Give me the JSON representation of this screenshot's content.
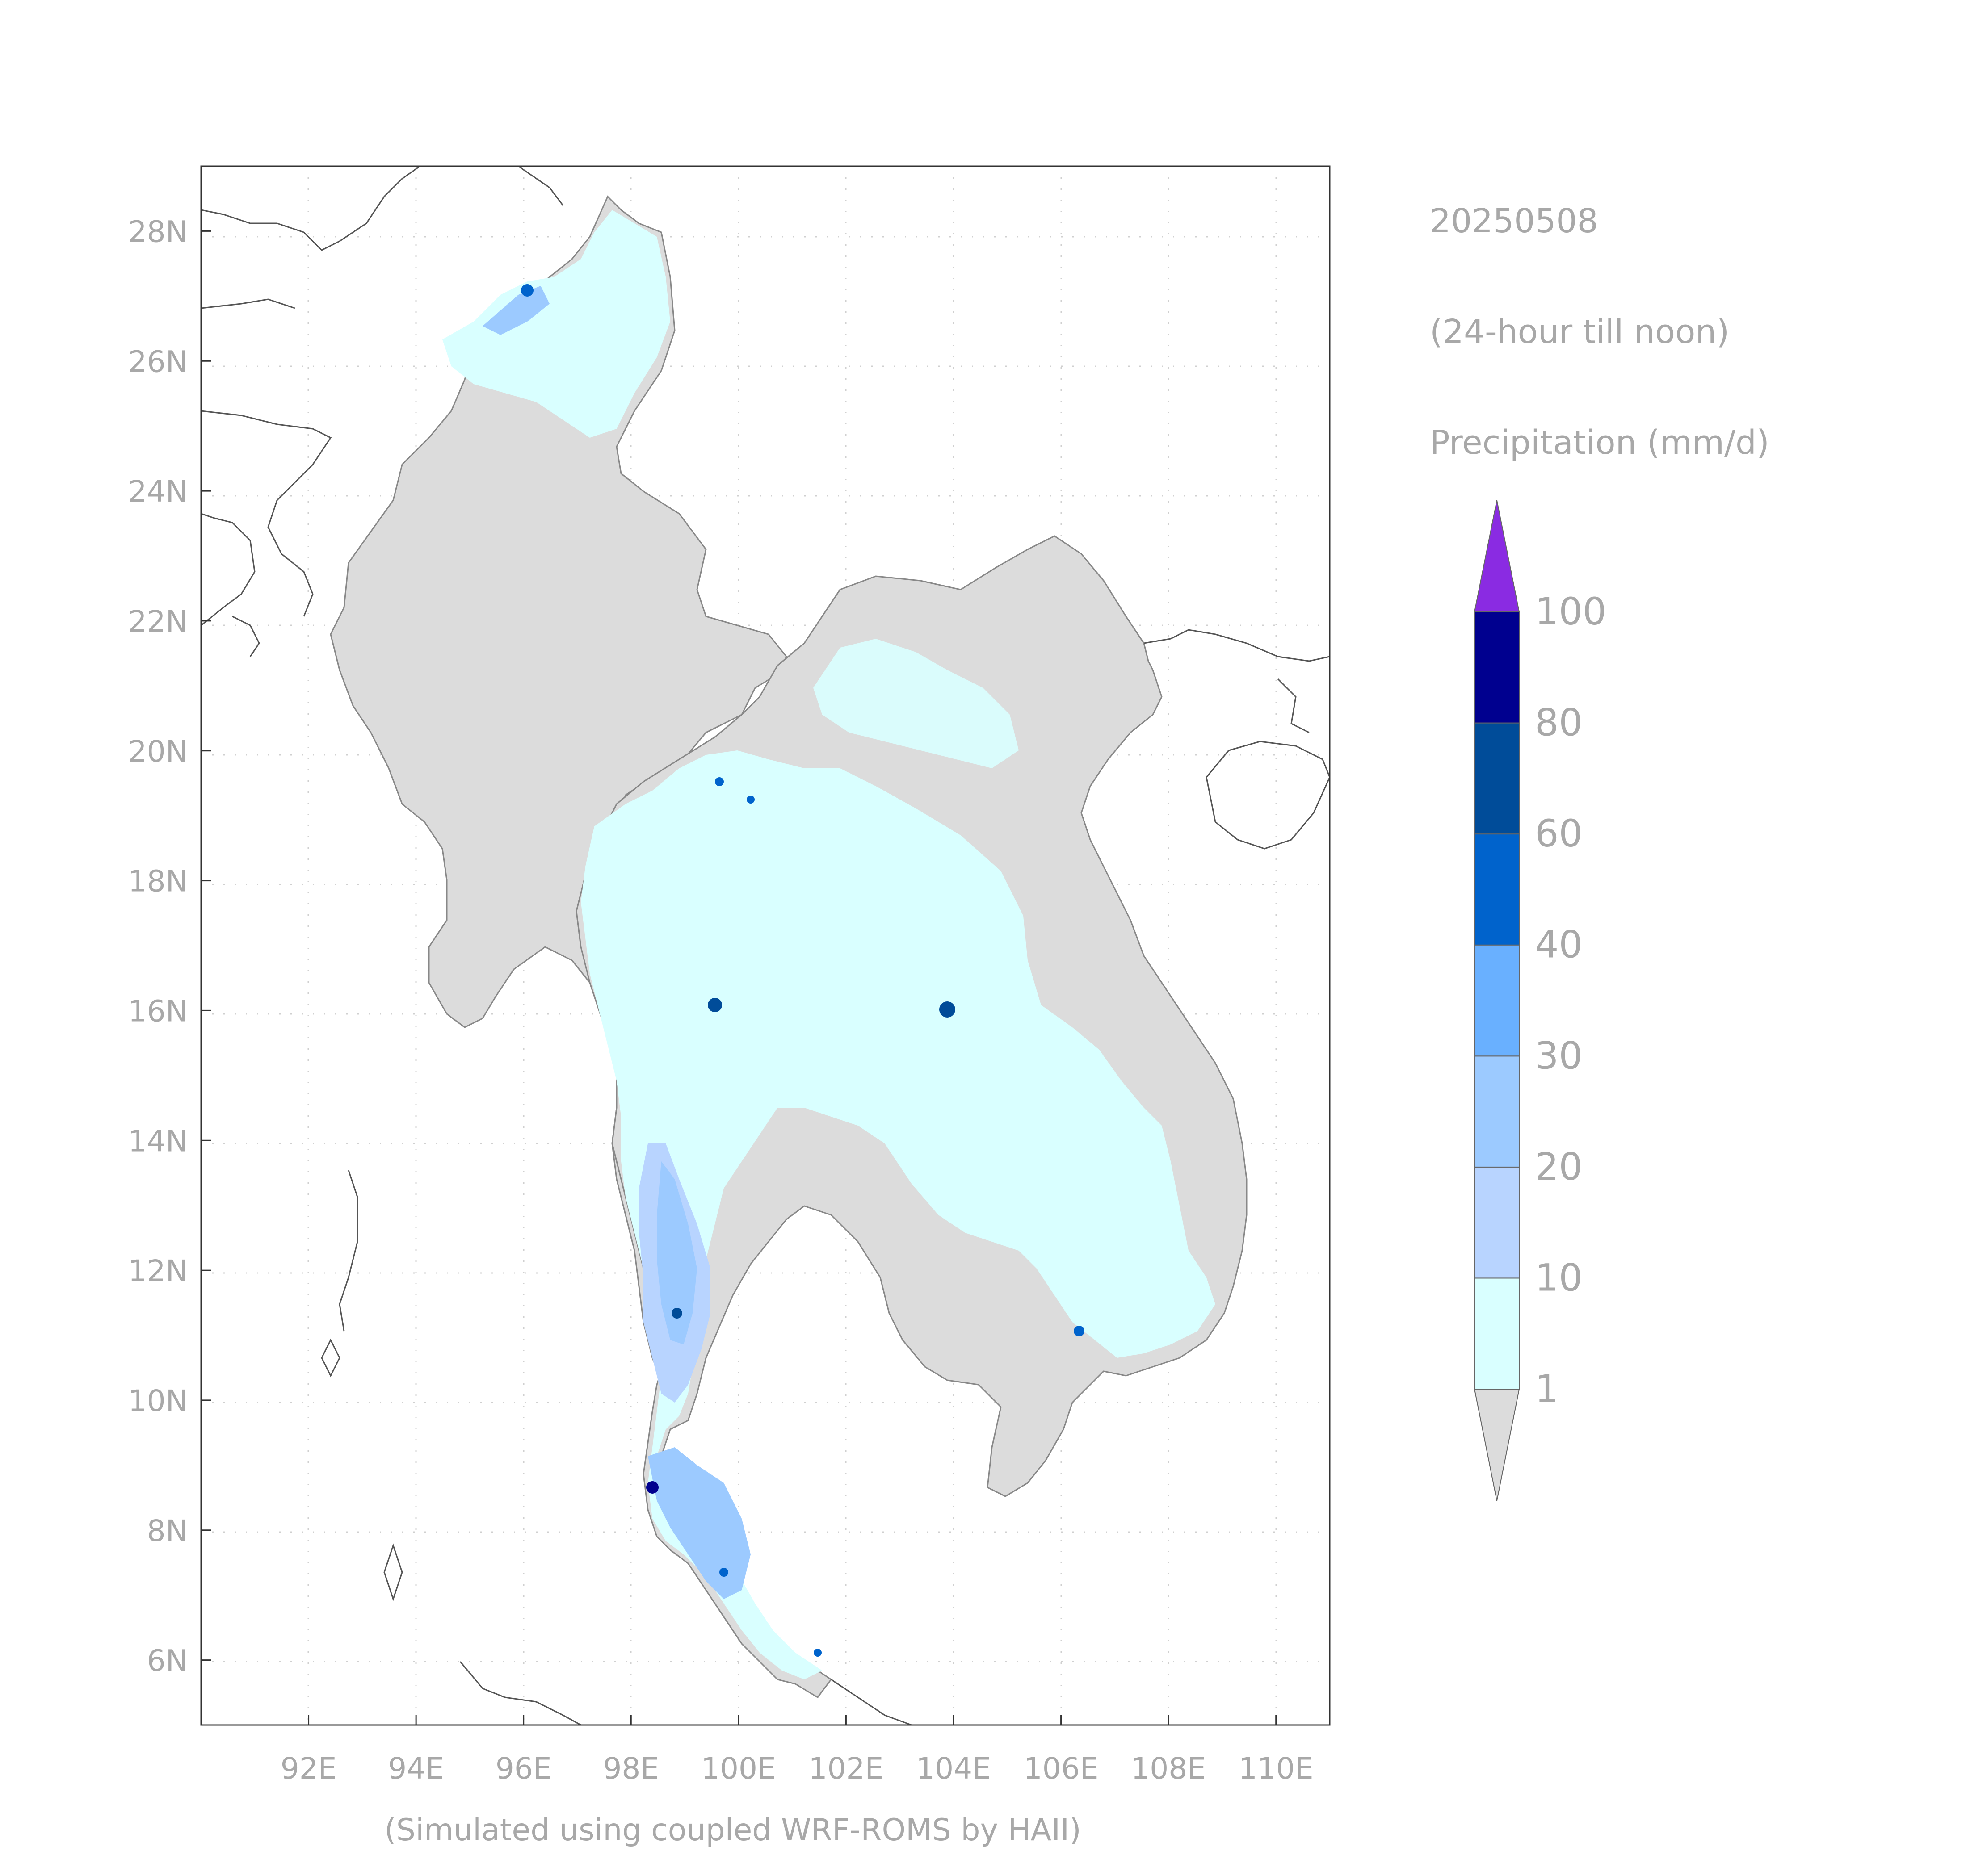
{
  "header": {
    "date": "20250508",
    "period": "(24-hour till noon)",
    "variable": "Precipitation (mm/d)"
  },
  "footer": {
    "credit": "(Simulated using coupled WRF-ROMS by HAII)"
  },
  "map": {
    "lon_range": [
      90,
      111
    ],
    "lat_range": [
      5,
      29
    ],
    "lon_ticks": [
      {
        "value": 92,
        "label": "92E"
      },
      {
        "value": 94,
        "label": "94E"
      },
      {
        "value": 96,
        "label": "96E"
      },
      {
        "value": 98,
        "label": "98E"
      },
      {
        "value": 100,
        "label": "100E"
      },
      {
        "value": 102,
        "label": "102E"
      },
      {
        "value": 104,
        "label": "104E"
      },
      {
        "value": 106,
        "label": "106E"
      },
      {
        "value": 108,
        "label": "108E"
      },
      {
        "value": 110,
        "label": "110E"
      }
    ],
    "lat_ticks": [
      {
        "value": 6,
        "label": "6N"
      },
      {
        "value": 8,
        "label": "8N"
      },
      {
        "value": 10,
        "label": "10N"
      },
      {
        "value": 12,
        "label": "12N"
      },
      {
        "value": 14,
        "label": "14N"
      },
      {
        "value": 16,
        "label": "16N"
      },
      {
        "value": 18,
        "label": "18N"
      },
      {
        "value": 20,
        "label": "20N"
      },
      {
        "value": 22,
        "label": "22N"
      },
      {
        "value": 24,
        "label": "24N"
      },
      {
        "value": 26,
        "label": "26N"
      },
      {
        "value": 28,
        "label": "28N"
      }
    ],
    "grid": "dotted",
    "colors": {
      "below_min": "#dcdcdc",
      "ocean": "#ffffff",
      "coastline": "#555555"
    }
  },
  "colorbar": {
    "orientation": "vertical",
    "bins": [
      {
        "from": 1,
        "to": 10,
        "color": "#d9ffff"
      },
      {
        "from": 10,
        "to": 20,
        "color": "#b8d4ff"
      },
      {
        "from": 20,
        "to": 30,
        "color": "#9ccaff"
      },
      {
        "from": 30,
        "to": 40,
        "color": "#69b0ff"
      },
      {
        "from": 40,
        "to": 60,
        "color": "#0063cc"
      },
      {
        "from": 60,
        "to": 80,
        "color": "#004c99"
      },
      {
        "from": 80,
        "to": 100,
        "color": "#00008f"
      }
    ],
    "labels": [
      "1",
      "10",
      "20",
      "30",
      "40",
      "60",
      "80",
      "100"
    ],
    "under_color": "#dcdcdc",
    "over_color": "#8a2be2"
  }
}
